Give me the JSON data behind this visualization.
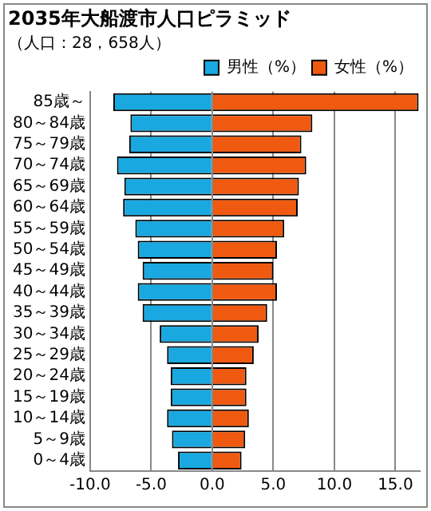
{
  "chart_data": {
    "type": "bar",
    "orientation": "horizontal",
    "stacked": true,
    "title": "2035年大船渡市人口ピラミッド",
    "subtitle": "（人口：28，658人）",
    "categories": [
      "85歳～",
      "80～84歳",
      "75～79歳",
      "70～74歳",
      "65～69歳",
      "60～64歳",
      "55～59歳",
      "50～54歳",
      "45～49歳",
      "40～44歳",
      "35～39歳",
      "30～34歳",
      "25～29歳",
      "20～24歳",
      "15～19歳",
      "10～14歳",
      "5～9歳",
      "0～4歳"
    ],
    "series": [
      {
        "name": "男性（%）",
        "color": "#1aa8e0",
        "values": [
          -8.1,
          -6.7,
          -6.8,
          -7.8,
          -7.2,
          -7.3,
          -6.3,
          -6.1,
          -5.7,
          -6.1,
          -5.7,
          -4.3,
          -3.7,
          -3.4,
          -3.4,
          -3.7,
          -3.3,
          -2.8
        ]
      },
      {
        "name": "女性（%）",
        "color": "#f05a10",
        "values": [
          16.9,
          8.2,
          7.3,
          7.7,
          7.1,
          7.0,
          5.9,
          5.3,
          5.0,
          5.3,
          4.5,
          3.8,
          3.4,
          2.8,
          2.8,
          3.0,
          2.7,
          2.4
        ]
      }
    ],
    "xlim": [
      -10,
      17
    ],
    "xticks": [
      {
        "value": -10,
        "label": "-10.0"
      },
      {
        "value": -5,
        "label": "-5.0"
      },
      {
        "value": 0,
        "label": "0.0"
      },
      {
        "value": 5,
        "label": "5.0"
      },
      {
        "value": 10,
        "label": "10.0"
      },
      {
        "value": 15,
        "label": "15.0"
      }
    ],
    "grid": "x",
    "legend": "top right"
  }
}
